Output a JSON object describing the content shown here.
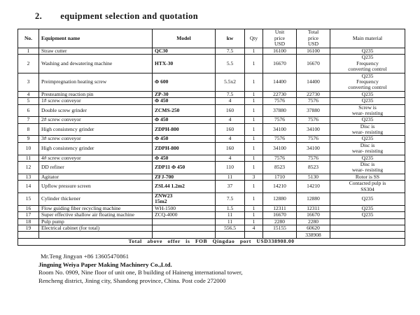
{
  "title": {
    "number": "2.",
    "text": "equipment selection and quotation"
  },
  "table": {
    "headers": {
      "no": "No.",
      "name": "Equipment name",
      "model": "Model",
      "kw": "kw",
      "qty": "Qty",
      "unit_price": "Unit\nprice\nUSD",
      "total_price": "Total\nprice\nUSD",
      "material": "Main material"
    },
    "rows": [
      {
        "no": "1",
        "name": "Straw cutter",
        "model": "QC30",
        "model_bold": true,
        "kw": "7.5",
        "qty": "1",
        "unit_price": "16100",
        "total_price": "16100",
        "material": "Q235"
      },
      {
        "no": "2",
        "name": "Washing and dewatering machine",
        "model": "HTX-30",
        "model_bold": true,
        "kw": "5.5",
        "qty": "1",
        "unit_price": "16670",
        "total_price": "16670",
        "material": "Q235\nFrequency\nconverting control"
      },
      {
        "no": "3",
        "name": "Preimpregnation heating screw",
        "model": "Φ 600",
        "model_bold": true,
        "kw": "5.5x2",
        "qty": "1",
        "unit_price": "14400",
        "total_price": "14400",
        "material": "Q235\nFrequency\nconverting control"
      },
      {
        "no": "4",
        "name": "Presteaming reaction pin",
        "model": "ZP-30",
        "model_bold": true,
        "kw": "7.5",
        "qty": "1",
        "unit_price": "22730",
        "total_price": "22730",
        "material": "Q235"
      },
      {
        "no": "5",
        "name": "1# screw conveyor",
        "model": "Φ 450",
        "model_bold": true,
        "kw": "4",
        "qty": "1",
        "unit_price": "7576",
        "total_price": "7576",
        "material": "Q235"
      },
      {
        "no": "6",
        "name": "Double screw grinder",
        "model": "ZCMS-250",
        "model_bold": true,
        "kw": "160",
        "qty": "1",
        "unit_price": "37880",
        "total_price": "37880",
        "material": "Screw is\nwear- resisting"
      },
      {
        "no": "7",
        "name": "2# screw conveyor",
        "model": "Φ 450",
        "model_bold": true,
        "kw": "4",
        "qty": "1",
        "unit_price": "7576",
        "total_price": "7576",
        "material": "Q235"
      },
      {
        "no": "8",
        "name": "High consistency grinder",
        "model": "ZDPH-800",
        "model_bold": true,
        "kw": "160",
        "qty": "1",
        "unit_price": "34100",
        "total_price": "34100",
        "material": "Disc is\nwear- resisting"
      },
      {
        "no": "9",
        "name": "3# screw conveyor",
        "model": "Φ 450",
        "model_bold": true,
        "kw": "4",
        "qty": "1",
        "unit_price": "7576",
        "total_price": "7576",
        "material": "Q235"
      },
      {
        "no": "10",
        "name": "High consistency grinder",
        "model": "ZDPH-800",
        "model_bold": true,
        "kw": "160",
        "qty": "1",
        "unit_price": "34100",
        "total_price": "34100",
        "material": "Disc is\nwear- resisting"
      },
      {
        "no": "11",
        "name": "4# screw conveyor",
        "model": "Φ 450",
        "model_bold": true,
        "kw": "4",
        "qty": "1",
        "unit_price": "7576",
        "total_price": "7576",
        "material": "Q235"
      },
      {
        "no": "12",
        "name": "DD refiner",
        "model": "ZDP11  Φ 450",
        "model_bold": true,
        "kw": "110",
        "qty": "1",
        "unit_price": "8523",
        "total_price": "8523",
        "material": "Disc is\nwear- resisting"
      },
      {
        "no": "13",
        "name": "Agitator",
        "model": "ZFJ-700",
        "model_bold": true,
        "kw": "11",
        "qty": "3",
        "unit_price": "1710",
        "total_price": "5130",
        "material": "Rotor is SS"
      },
      {
        "no": "14",
        "name": "Upflow pressure screen",
        "model": "ZSL44   1.2m2",
        "model_bold": true,
        "kw": "37",
        "qty": "1",
        "unit_price": "14210",
        "total_price": "14210",
        "material": "Contacted pulp is\nSS304"
      },
      {
        "no": "15",
        "name": "Cylinder thickener",
        "model": "ZNW23\n15m2",
        "model_bold": true,
        "kw": "7.5",
        "qty": "1",
        "unit_price": "12880",
        "total_price": "12880",
        "material": "Q235"
      },
      {
        "no": "16",
        "name": "Flow guiding fiber recycling machine",
        "model": "WH-1500",
        "model_bold": false,
        "kw": "1.5",
        "qty": "1",
        "unit_price": "12311",
        "total_price": "12311",
        "material": "Q235"
      },
      {
        "no": "17",
        "name": "Super effective shallow air floating machine",
        "model": "ZCQ-4000",
        "model_bold": false,
        "kw": "11",
        "qty": "1",
        "unit_price": "16670",
        "total_price": "16670",
        "material": "Q235"
      },
      {
        "no": "18",
        "name": "Pulp pump",
        "model": "",
        "model_bold": false,
        "kw": "11",
        "qty": "1",
        "unit_price": "2280",
        "total_price": "2280",
        "material": ""
      },
      {
        "no": "19",
        "name": "Electrical cabinet (for total)",
        "model": "",
        "model_bold": false,
        "kw": "556.5",
        "qty": "4",
        "unit_price": "15155",
        "total_price": "60620",
        "material": ""
      }
    ],
    "sum_row": {
      "total_price": "338908"
    },
    "grand_total_line": "Total above offer is FOB Qingdao port USD338908.00"
  },
  "footer": {
    "contact": "Mr.Teng Jingyan +86 13605470861",
    "company": "Jingning Weiya Paper Making Machinery Co.,Ltd.",
    "address_line1": "Room No. 0909, Nine floor of unit one, B building of Haineng international tower,",
    "address_line2": "Rencheng district, Jining city, Shandong province, China. Post code 272000"
  }
}
